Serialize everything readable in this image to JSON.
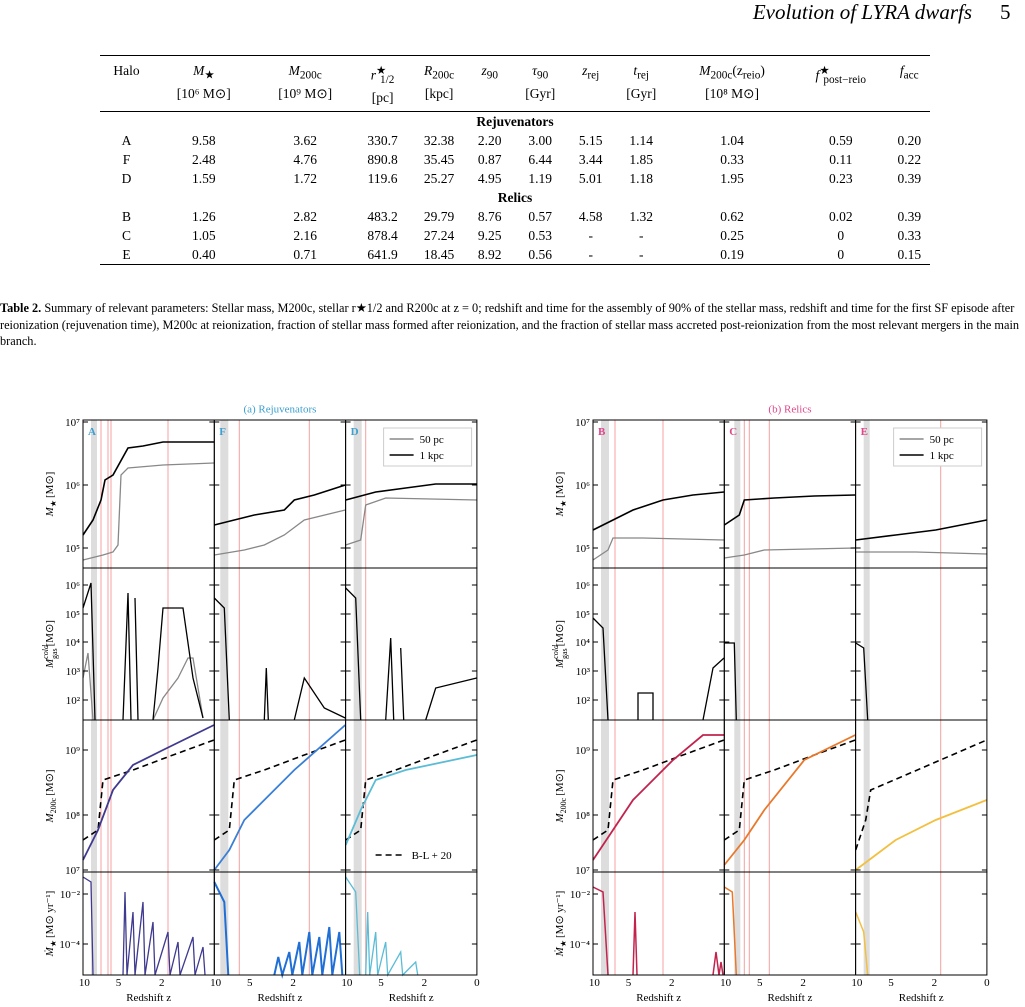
{
  "header": {
    "title": "Evolution of LYRA dwarfs",
    "page": "5"
  },
  "table": {
    "columns": [
      {
        "base": "Halo"
      },
      {
        "base": "M",
        "sub": "★",
        "unit": "[10⁶ M⊙]"
      },
      {
        "base": "M",
        "sub": "200c",
        "unit": "[10⁹ M⊙]"
      },
      {
        "base": "r",
        "sup": "★",
        "sub": "1/2",
        "unit": "[pc]"
      },
      {
        "base": "R",
        "sub": "200c",
        "unit": "[kpc]"
      },
      {
        "base": "z",
        "sub": "90"
      },
      {
        "base": "τ",
        "sub": "90",
        "unit": "[Gyr]"
      },
      {
        "base": "z",
        "sub": "rej"
      },
      {
        "base": "t",
        "sub": "rej",
        "unit": "[Gyr]"
      },
      {
        "base": "M",
        "sub": "200c",
        "tail": "(z",
        "tail_sub": "reio",
        "tail_end": ")",
        "unit": "[10⁸ M⊙]"
      },
      {
        "base": "f",
        "sup": "★",
        "sub": "post−reio"
      },
      {
        "base": "f",
        "sub": "acc"
      }
    ],
    "groups": [
      {
        "title": "Rejuvenators",
        "rows": [
          [
            "A",
            "9.58",
            "3.62",
            "330.7",
            "32.38",
            "2.20",
            "3.00",
            "5.15",
            "1.14",
            "1.04",
            "0.59",
            "0.20"
          ],
          [
            "F",
            "2.48",
            "4.76",
            "890.8",
            "35.45",
            "0.87",
            "6.44",
            "3.44",
            "1.85",
            "0.33",
            "0.11",
            "0.22"
          ],
          [
            "D",
            "1.59",
            "1.72",
            "119.6",
            "25.27",
            "4.95",
            "1.19",
            "5.01",
            "1.18",
            "1.95",
            "0.23",
            "0.39"
          ]
        ]
      },
      {
        "title": "Relics",
        "rows": [
          [
            "B",
            "1.26",
            "2.82",
            "483.2",
            "29.79",
            "8.76",
            "0.57",
            "4.58",
            "1.32",
            "0.62",
            "0.02",
            "0.39"
          ],
          [
            "C",
            "1.05",
            "2.16",
            "878.4",
            "27.24",
            "9.25",
            "0.53",
            "-",
            "-",
            "0.25",
            "0",
            "0.33"
          ],
          [
            "E",
            "0.40",
            "0.71",
            "641.9",
            "18.45",
            "8.92",
            "0.56",
            "-",
            "-",
            "0.19",
            "0",
            "0.15"
          ]
        ]
      }
    ]
  },
  "caption": {
    "label": "Table 2.",
    "text": "Summary of relevant parameters: Stellar mass, M200c, stellar r★1/2 and R200c at z = 0; redshift and time for the assembly of 90% of the stellar mass, redshift and time for the first SF episode after reionization (rejuvenation time), M200c at reionization, fraction of stellar mass formed after reionization, and the fraction of stellar mass accreted post-reionization from the most relevant mergers in the main branch."
  },
  "figure": {
    "groups": [
      {
        "title": "(a) Rejuvenators",
        "halos": [
          "A",
          "F",
          "D"
        ]
      },
      {
        "title": "(b) Relics",
        "halos": [
          "B",
          "C",
          "E"
        ]
      }
    ],
    "ylabels": [
      {
        "base": "M",
        "sub": "★",
        "unit": "[M⊙]"
      },
      {
        "base": "M",
        "sub": "gas",
        "sup": "cold",
        "unit": "[M⊙]"
      },
      {
        "base": "M",
        "sub": "200c",
        "unit": "[M⊙]"
      },
      {
        "base": "Ṁ",
        "sub": "★",
        "unit": "[M⊙ yr⁻¹]"
      }
    ],
    "yticks": [
      [
        "10⁵",
        "10⁶",
        "10⁷"
      ],
      [
        "10²",
        "10³",
        "10⁴",
        "10⁵",
        "10⁶"
      ],
      [
        "10⁷",
        "10⁸",
        "10⁹"
      ],
      [
        "10⁻⁴",
        "10⁻²"
      ]
    ],
    "xticks": [
      "10",
      "5",
      "2"
    ],
    "xtick_end": "0",
    "xlabel": "Redshift z",
    "legend": [
      "50 pc",
      "1 kpc"
    ],
    "legend2": "B-L + 20"
  }
}
